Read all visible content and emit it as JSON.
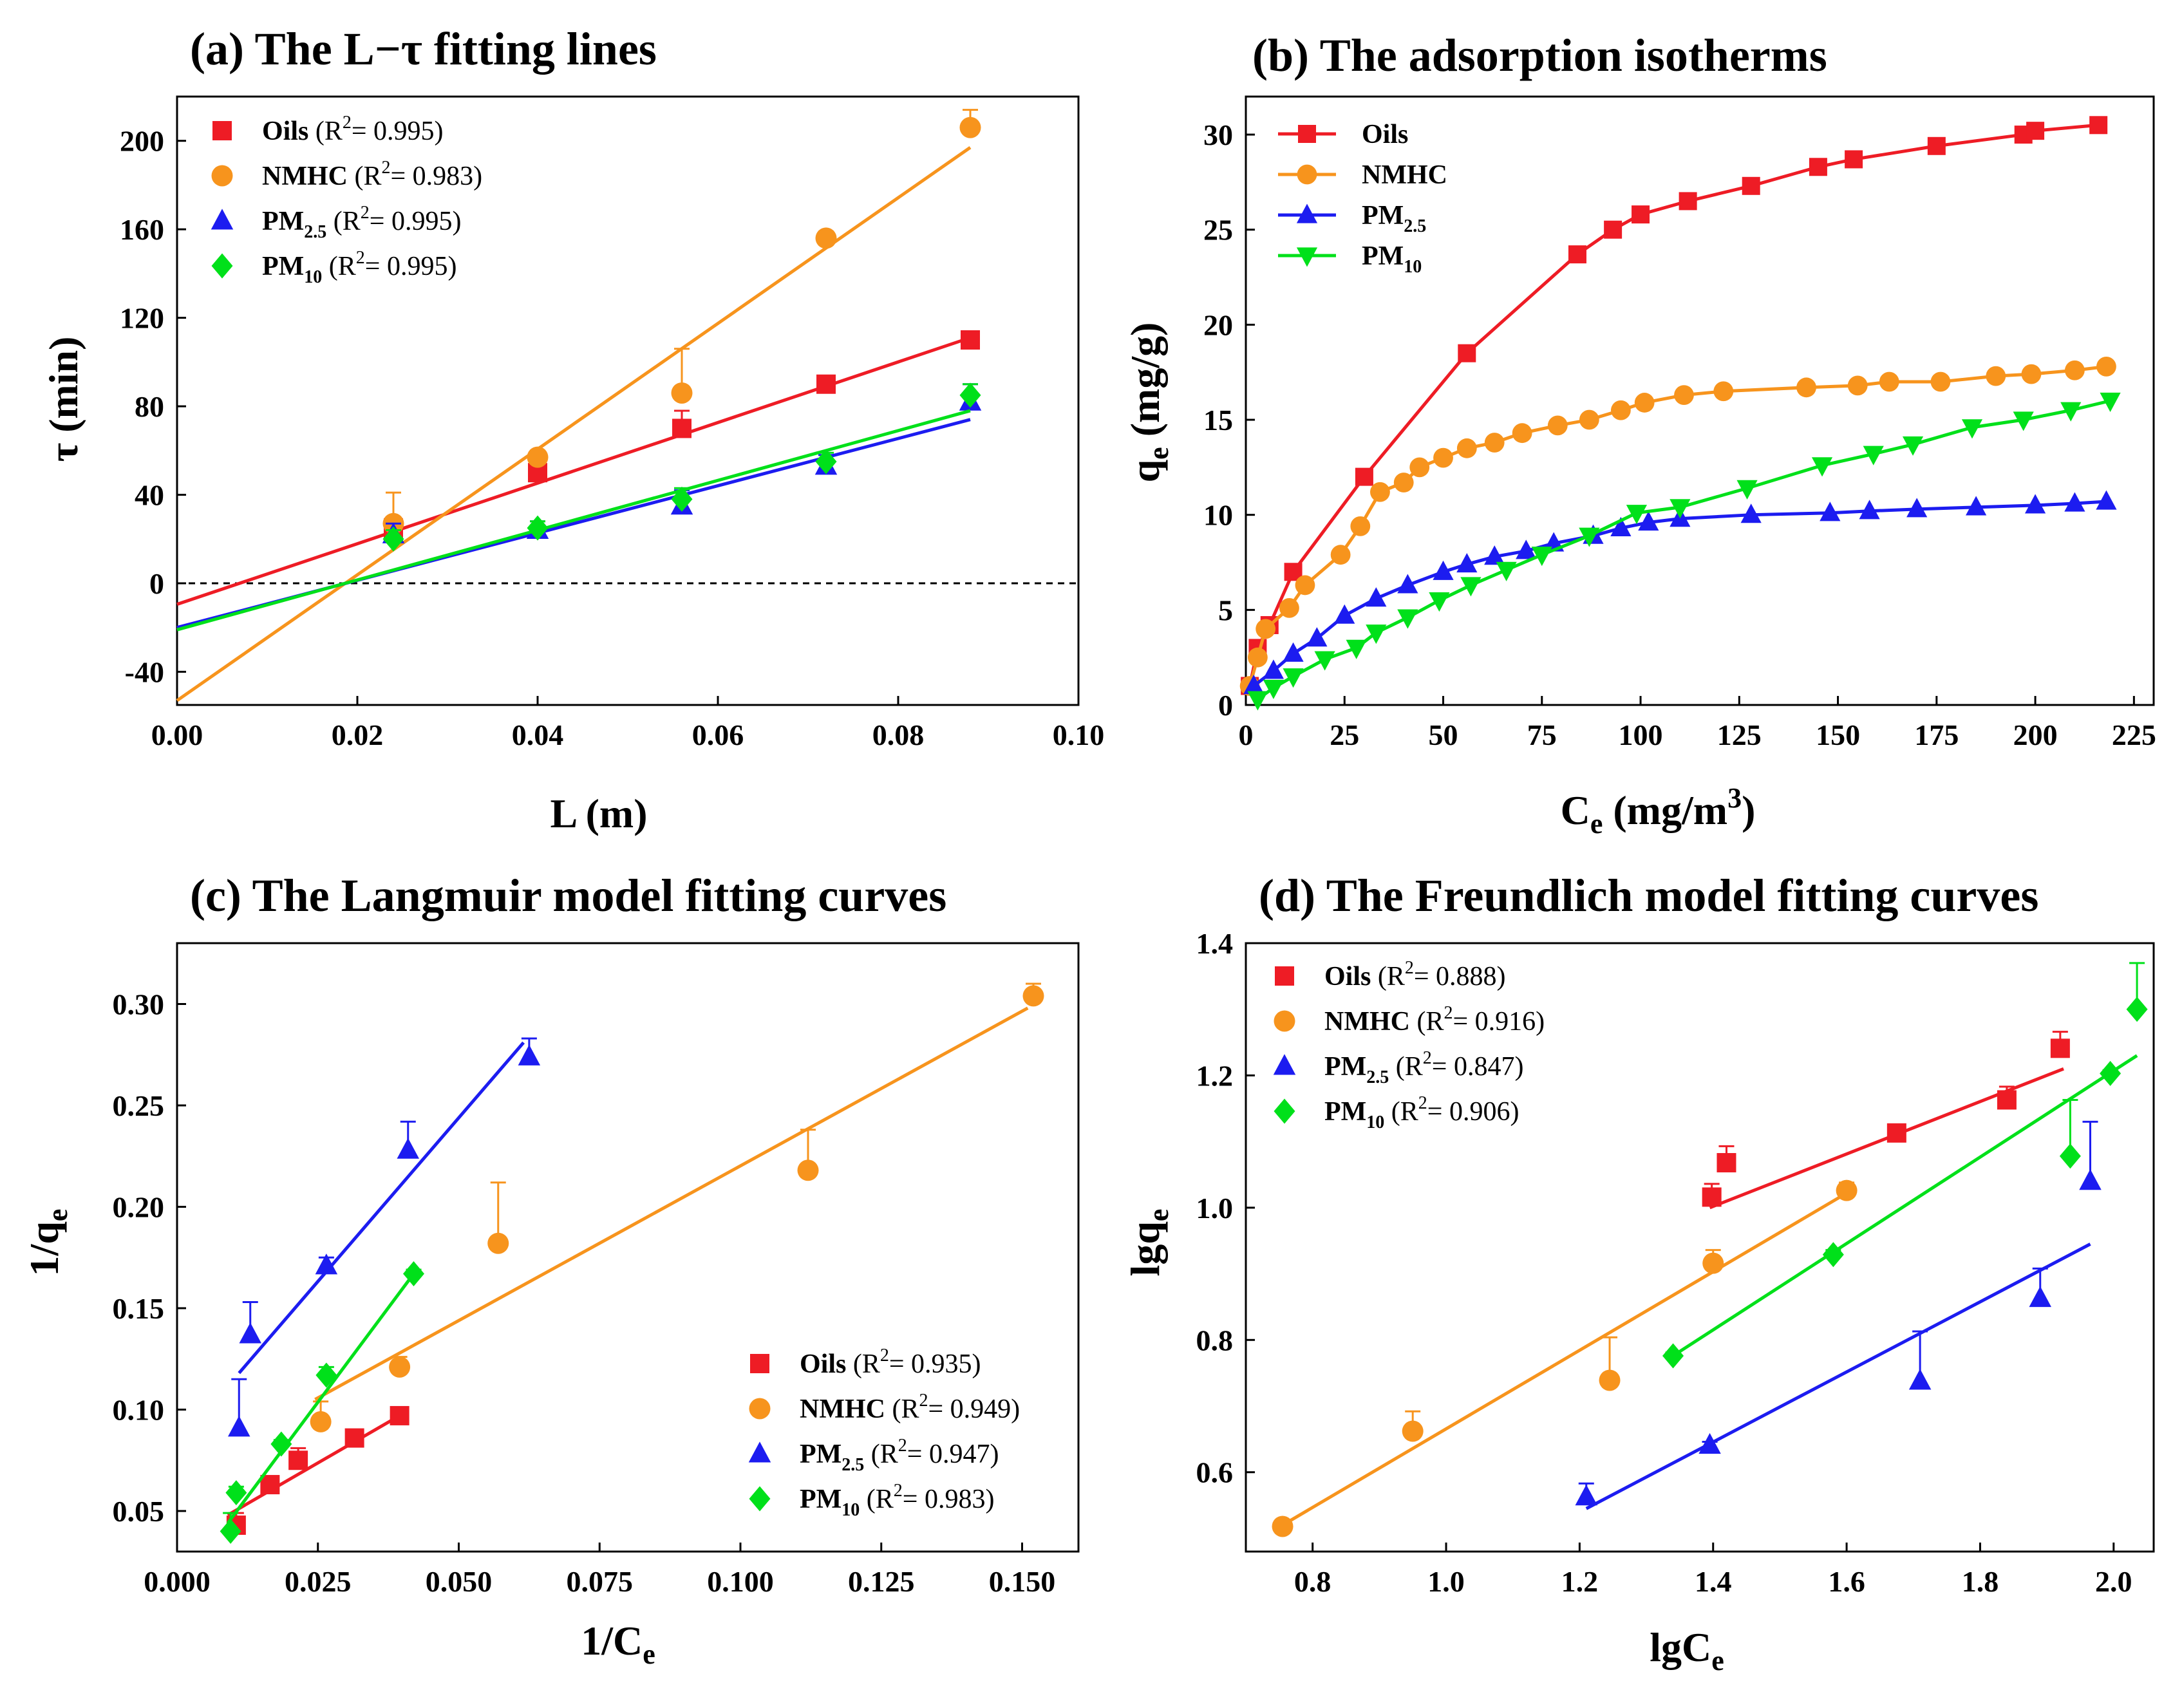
{
  "chart_data": [
    {
      "id": "a",
      "type": "scatter",
      "title": "(a) The L−τ fitting lines",
      "xlabel": "L (m)",
      "ylabel": "τ (min)",
      "xlim": [
        0,
        0.1
      ],
      "ylim": [
        -55,
        220
      ],
      "xticks": [
        0,
        0.02,
        0.04,
        0.06,
        0.08,
        0.1
      ],
      "xtick_labels": [
        "0.00",
        "0.02",
        "0.04",
        "0.06",
        "0.08",
        "0.10"
      ],
      "yticks": [
        -40,
        0,
        40,
        80,
        120,
        160,
        200
      ],
      "ytick_labels": [
        "-40",
        "0",
        "40",
        "80",
        "120",
        "160",
        "200"
      ],
      "zero_line": true,
      "legend_position": "top-left",
      "series": [
        {
          "name": "Oils",
          "sub": "",
          "r2": "(R2= 0.995)",
          "r2_text": "(R",
          "r2_sup": "2",
          "r2_tail": "= 0.995)",
          "color": "#ee1c25",
          "marker": "square",
          "x": [
            0.024,
            0.04,
            0.056,
            0.072,
            0.088
          ],
          "y": [
            25,
            50,
            70,
            90,
            110
          ],
          "err": [
            4,
            4,
            8,
            3,
            3
          ],
          "fit": {
            "x": [
              0,
              0.088
            ],
            "y": [
              -9.5,
              111
            ]
          }
        },
        {
          "name": "NMHC",
          "sub": "",
          "r2": "(R2= 0.983)",
          "r2_text": "(R",
          "r2_sup": "2",
          "r2_tail": "= 0.983)",
          "color": "#f7941d",
          "marker": "circle",
          "x": [
            0.024,
            0.04,
            0.056,
            0.072,
            0.088
          ],
          "y": [
            27,
            57,
            86,
            156,
            206
          ],
          "err": [
            14,
            3,
            20,
            3,
            8
          ],
          "fit": {
            "x": [
              0,
              0.088
            ],
            "y": [
              -53,
              197
            ]
          }
        },
        {
          "name": "PM",
          "sub": "2.5",
          "r2": "(R2= 0.995)",
          "r2_text": "(R",
          "r2_sup": "2",
          "r2_tail": "= 0.995)",
          "color": "#1c1cf0",
          "marker": "triangle",
          "x": [
            0.024,
            0.04,
            0.056,
            0.072,
            0.088
          ],
          "y": [
            22,
            24,
            35,
            53,
            82
          ],
          "err": [
            5,
            4,
            7,
            5,
            8
          ],
          "fit": {
            "x": [
              0,
              0.088
            ],
            "y": [
              -20,
              74
            ]
          }
        },
        {
          "name": "PM",
          "sub": "10",
          "r2": "(R2= 0.995)",
          "r2_text": "(R",
          "r2_sup": "2",
          "r2_tail": "= 0.995)",
          "color": "#00e01a",
          "marker": "diamond",
          "x": [
            0.024,
            0.04,
            0.056,
            0.072,
            0.088
          ],
          "y": [
            20,
            25,
            38,
            55,
            85
          ],
          "err": [
            4,
            3,
            5,
            4,
            5
          ],
          "fit": {
            "x": [
              0,
              0.088
            ],
            "y": [
              -21,
              78
            ]
          }
        }
      ]
    },
    {
      "id": "b",
      "type": "line",
      "title": "(b) The adsorption isotherms",
      "xlabel": "Ce (mg/m3)",
      "ylabel": "qe (mg/g)",
      "xlim": [
        0,
        230
      ],
      "ylim": [
        0,
        32
      ],
      "xticks": [
        0,
        25,
        50,
        75,
        100,
        125,
        150,
        175,
        200,
        225
      ],
      "xtick_labels": [
        "0",
        "25",
        "50",
        "75",
        "100",
        "125",
        "150",
        "175",
        "200",
        "225"
      ],
      "yticks": [
        0,
        5,
        10,
        15,
        20,
        25,
        30
      ],
      "ytick_labels": [
        "0",
        "5",
        "10",
        "15",
        "20",
        "25",
        "30"
      ],
      "legend_position": "top-left",
      "series": [
        {
          "name": "Oils",
          "sub": "",
          "color": "#ee1c25",
          "marker": "square",
          "x": [
            1,
            3,
            6,
            12,
            30,
            56,
            84,
            93,
            100,
            112,
            128,
            145,
            154,
            175,
            197,
            200,
            216
          ],
          "y": [
            1.0,
            3.0,
            4.2,
            7.0,
            12.0,
            18.5,
            23.7,
            25.0,
            25.8,
            26.5,
            27.3,
            28.3,
            28.7,
            29.4,
            30.0,
            30.2,
            30.5
          ]
        },
        {
          "name": "NMHC",
          "sub": "",
          "color": "#f7941d",
          "marker": "circle",
          "x": [
            1,
            3,
            5,
            11,
            15,
            24,
            29,
            34,
            40,
            44,
            50,
            56,
            63,
            70,
            79,
            87,
            95,
            101,
            111,
            121,
            142,
            155,
            163,
            176,
            190,
            199,
            210,
            218
          ],
          "y": [
            1.0,
            2.5,
            4.0,
            5.1,
            6.3,
            7.9,
            9.4,
            11.2,
            11.7,
            12.5,
            13.0,
            13.5,
            13.8,
            14.3,
            14.7,
            15.0,
            15.5,
            15.9,
            16.3,
            16.5,
            16.7,
            16.8,
            17.0,
            17.0,
            17.3,
            17.4,
            17.6,
            17.8
          ]
        },
        {
          "name": "PM",
          "sub": "2.5",
          "color": "#1c1cf0",
          "marker": "triangle",
          "x": [
            2,
            7,
            12,
            18,
            25,
            33,
            41,
            50,
            56,
            63,
            71,
            78,
            88,
            95,
            102,
            110,
            128,
            148,
            158,
            170,
            185,
            200,
            210,
            218
          ],
          "y": [
            1.0,
            1.8,
            2.7,
            3.5,
            4.7,
            5.6,
            6.3,
            7.0,
            7.4,
            7.8,
            8.1,
            8.5,
            8.9,
            9.3,
            9.6,
            9.8,
            10.0,
            10.1,
            10.2,
            10.3,
            10.4,
            10.5,
            10.6,
            10.7
          ]
        },
        {
          "name": "PM",
          "sub": "10",
          "color": "#00e01a",
          "marker": "invtriangle",
          "x": [
            3,
            7,
            12,
            20,
            28,
            33,
            41,
            49,
            57,
            66,
            75,
            87,
            99,
            110,
            127,
            146,
            159,
            169,
            184,
            197,
            209,
            219
          ],
          "y": [
            0.3,
            0.9,
            1.5,
            2.4,
            3.0,
            3.8,
            4.6,
            5.5,
            6.3,
            7.1,
            7.9,
            8.9,
            10.1,
            10.4,
            11.4,
            12.6,
            13.2,
            13.7,
            14.6,
            15.0,
            15.5,
            16.0
          ]
        }
      ]
    },
    {
      "id": "c",
      "type": "scatter",
      "title": "(c) The Langmuir model fitting curves",
      "xlabel": "1/Ce",
      "ylabel": "1/qe",
      "xlim": [
        0,
        0.16
      ],
      "ylim": [
        0.03,
        0.33
      ],
      "xticks": [
        0,
        0.025,
        0.05,
        0.075,
        0.1,
        0.125,
        0.15
      ],
      "xtick_labels": [
        "0.000",
        "0.025",
        "0.050",
        "0.075",
        "0.100",
        "0.125",
        "0.150"
      ],
      "yticks": [
        0.05,
        0.1,
        0.15,
        0.2,
        0.25,
        0.3
      ],
      "ytick_labels": [
        "0.05",
        "0.10",
        "0.15",
        "0.20",
        "0.25",
        "0.30"
      ],
      "legend_position": "bottom-right",
      "series": [
        {
          "name": "Oils",
          "sub": "",
          "r2": "(R2= 0.935)",
          "r2_text": "(R",
          "r2_sup": "2",
          "r2_tail": "= 0.935)",
          "color": "#ee1c25",
          "marker": "square",
          "x": [
            0.0105,
            0.0165,
            0.0215,
            0.0315,
            0.0395
          ],
          "y": [
            0.043,
            0.063,
            0.075,
            0.086,
            0.097
          ],
          "err": [
            0.006,
            0.002,
            0.006,
            0.002,
            0.002
          ],
          "fit": {
            "x": [
              0.009,
              0.0395
            ],
            "y": [
              0.048,
              0.097
            ]
          }
        },
        {
          "name": "NMHC",
          "sub": "",
          "r2": "(R2= 0.949)",
          "r2_text": "(R",
          "r2_sup": "2",
          "r2_tail": "= 0.949)",
          "color": "#f7941d",
          "marker": "circle",
          "x": [
            0.0255,
            0.0395,
            0.057,
            0.112,
            0.152
          ],
          "y": [
            0.094,
            0.121,
            0.182,
            0.218,
            0.304
          ],
          "err": [
            0.01,
            0.005,
            0.03,
            0.02,
            0.006
          ],
          "fit": {
            "x": [
              0.0245,
              0.151
            ],
            "y": [
              0.105,
              0.298
            ]
          }
        },
        {
          "name": "PM",
          "sub": "2.5",
          "r2": "(R2= 0.947)",
          "r2_text": "(R",
          "r2_sup": "2",
          "r2_tail": "= 0.947)",
          "color": "#1c1cf0",
          "marker": "triangle",
          "x": [
            0.011,
            0.013,
            0.0265,
            0.041,
            0.0625
          ],
          "y": [
            0.091,
            0.137,
            0.171,
            0.228,
            0.274
          ],
          "err": [
            0.024,
            0.016,
            0.004,
            0.014,
            0.009
          ],
          "fit": {
            "x": [
              0.011,
              0.0615
            ],
            "y": [
              0.118,
              0.281
            ]
          }
        },
        {
          "name": "PM",
          "sub": "10",
          "r2": "(R2= 0.983)",
          "r2_text": "(R",
          "r2_sup": "2",
          "r2_tail": "= 0.983)",
          "color": "#00e01a",
          "marker": "diamond",
          "x": [
            0.0095,
            0.0105,
            0.0185,
            0.0265,
            0.042
          ],
          "y": [
            0.04,
            0.059,
            0.083,
            0.117,
            0.167
          ],
          "err": [
            0.009,
            0.003,
            0.002,
            0.004,
            0.002
          ],
          "fit": {
            "x": [
              0.009,
              0.042
            ],
            "y": [
              0.044,
              0.167
            ]
          }
        }
      ]
    },
    {
      "id": "d",
      "type": "scatter",
      "title": "(d) The Freundlich model fitting curves",
      "xlabel": "lgCe",
      "ylabel": "lgqe",
      "xlim": [
        0.7,
        2.06
      ],
      "ylim": [
        0.48,
        1.4
      ],
      "xticks": [
        0.8,
        1.0,
        1.2,
        1.4,
        1.6,
        1.8,
        2.0
      ],
      "xtick_labels": [
        "0.8",
        "1.0",
        "1.2",
        "1.4",
        "1.6",
        "1.8",
        "2.0"
      ],
      "yticks": [
        0.6,
        0.8,
        1.0,
        1.2,
        1.4
      ],
      "ytick_labels": [
        "0.6",
        "0.8",
        "1.0",
        "1.2",
        "1.4"
      ],
      "legend_position": "top-left",
      "series": [
        {
          "name": "Oils",
          "sub": "",
          "r2": "(R2= 0.888)",
          "r2_text": "(R",
          "r2_sup": "2",
          "r2_tail": "= 0.888)",
          "color": "#ee1c25",
          "marker": "square",
          "x": [
            1.398,
            1.42,
            1.675,
            1.84,
            1.92
          ],
          "y": [
            1.016,
            1.068,
            1.113,
            1.163,
            1.241
          ],
          "err": [
            0.02,
            0.025,
            0.01,
            0.02,
            0.025
          ],
          "fit": {
            "x": [
              1.395,
              1.925
            ],
            "y": [
              1.0,
              1.21
            ]
          }
        },
        {
          "name": "NMHC",
          "sub": "",
          "r2": "(R2= 0.916)",
          "r2_text": "(R",
          "r2_sup": "2",
          "r2_tail": "= 0.916)",
          "color": "#f7941d",
          "marker": "circle",
          "x": [
            0.755,
            0.95,
            1.245,
            1.4,
            1.6
          ],
          "y": [
            0.518,
            0.662,
            0.739,
            0.916,
            1.026
          ],
          "err": [
            0.004,
            0.03,
            0.065,
            0.02,
            0.012
          ],
          "fit": {
            "x": [
              0.755,
              1.6
            ],
            "y": [
              0.52,
              1.022
            ]
          }
        },
        {
          "name": "PM",
          "sub": "2.5",
          "r2": "(R2= 0.847)",
          "r2_text": "(R",
          "r2_sup": "2",
          "r2_tail": "= 0.847)",
          "color": "#1c1cf0",
          "marker": "triangle",
          "x": [
            1.21,
            1.395,
            1.71,
            1.89,
            1.965
          ],
          "y": [
            0.563,
            0.641,
            0.738,
            0.863,
            1.04
          ],
          "err": [
            0.02,
            0.005,
            0.075,
            0.045,
            0.09
          ],
          "fit": {
            "x": [
              1.21,
              1.965
            ],
            "y": [
              0.545,
              0.945
            ]
          }
        },
        {
          "name": "PM",
          "sub": "10",
          "r2": "(R2= 0.906)",
          "r2_text": "(R",
          "r2_sup": "2",
          "r2_tail": "= 0.906)",
          "color": "#00e01a",
          "marker": "diamond",
          "x": [
            1.34,
            1.58,
            1.935,
            1.995,
            2.035
          ],
          "y": [
            0.776,
            0.929,
            1.078,
            1.203,
            1.3
          ],
          "err": [
            0.005,
            0.007,
            0.085,
            0.005,
            0.07
          ],
          "fit": {
            "x": [
              1.34,
              2.035
            ],
            "y": [
              0.776,
              1.23
            ]
          }
        }
      ]
    }
  ]
}
